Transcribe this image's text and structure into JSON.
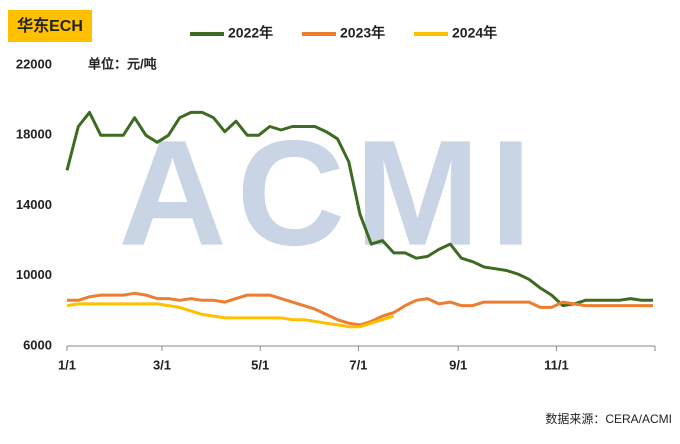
{
  "chart_data": {
    "type": "line",
    "title": "华东ECH",
    "subtitle": "单位：元/吨",
    "source": "数据来源：CERA/ACMI",
    "watermark": "ACMI",
    "x": [
      1,
      8,
      15,
      22,
      29,
      36,
      43,
      50,
      57,
      64,
      71,
      78,
      85,
      92,
      99,
      106,
      113,
      120,
      127,
      134,
      141,
      148,
      155,
      162,
      169,
      176,
      183,
      190,
      197,
      204,
      211,
      218,
      225,
      232,
      239,
      246,
      253,
      260,
      267,
      274,
      281,
      288,
      295,
      302,
      309,
      316,
      323,
      330,
      337,
      344,
      351,
      358,
      365
    ],
    "xlim": [
      1,
      365
    ],
    "xticks": [
      {
        "value": 1,
        "label": "1/1"
      },
      {
        "value": 60,
        "label": "3/1"
      },
      {
        "value": 121,
        "label": "5/1"
      },
      {
        "value": 182,
        "label": "7/1"
      },
      {
        "value": 244,
        "label": "9/1"
      },
      {
        "value": 305,
        "label": "11/1"
      }
    ],
    "ylim": [
      6000,
      22000
    ],
    "yticks": [
      6000,
      10000,
      14000,
      18000,
      22000
    ],
    "grid": false,
    "series": [
      {
        "name": "2022年",
        "color": "#3d6b22",
        "values": [
          16000,
          18500,
          19300,
          18000,
          18000,
          18000,
          19000,
          18000,
          17600,
          18000,
          19000,
          19300,
          19300,
          19000,
          18200,
          18800,
          18000,
          18000,
          18500,
          18300,
          18500,
          18500,
          18500,
          18200,
          17800,
          16500,
          13500,
          11800,
          12000,
          11300,
          11300,
          11000,
          11100,
          11500,
          11800,
          11000,
          10800,
          10500,
          10400,
          10300,
          10100,
          9800,
          9300,
          8900,
          8300,
          8400,
          8600,
          8600,
          8600,
          8600,
          8700,
          8600,
          8600
        ]
      },
      {
        "name": "2023年",
        "color": "#ed7d31",
        "values": [
          8600,
          8600,
          8800,
          8900,
          8900,
          8900,
          9000,
          8900,
          8700,
          8700,
          8600,
          8700,
          8600,
          8600,
          8500,
          8700,
          8900,
          8900,
          8900,
          8700,
          8500,
          8300,
          8100,
          7800,
          7500,
          7300,
          7200,
          7400,
          7700,
          7900,
          8300,
          8600,
          8700,
          8400,
          8500,
          8300,
          8300,
          8500,
          8500,
          8500,
          8500,
          8500,
          8200,
          8200,
          8500,
          8400,
          8300,
          8300,
          8300,
          8300,
          8300,
          8300,
          8300
        ]
      },
      {
        "name": "2024年",
        "color": "#ffc000",
        "values": [
          8300,
          8400,
          8400,
          8400,
          8400,
          8400,
          8400,
          8400,
          8400,
          8300,
          8200,
          8000,
          7800,
          7700,
          7600,
          7600,
          7600,
          7600,
          7600,
          7600,
          7500,
          7500,
          7400,
          7300,
          7200,
          7100,
          7100,
          7300,
          7500,
          7700,
          null,
          null,
          null,
          null,
          null,
          null,
          null,
          null,
          null,
          null,
          null,
          null,
          null,
          null,
          null,
          null,
          null,
          null,
          null,
          null,
          null,
          null,
          null
        ]
      }
    ]
  }
}
